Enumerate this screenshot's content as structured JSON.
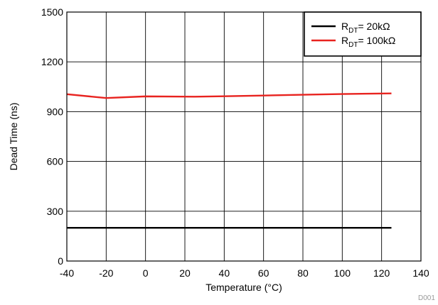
{
  "chart_data": {
    "type": "line",
    "xlabel": "Temperature (°C)",
    "ylabel": "Dead Time (ns)",
    "xlim": [
      -40,
      140
    ],
    "ylim": [
      0,
      1500
    ],
    "x_ticks": [
      -40,
      -20,
      0,
      20,
      40,
      60,
      80,
      100,
      120,
      140
    ],
    "y_ticks": [
      0,
      300,
      600,
      900,
      1200,
      1500
    ],
    "grid": true,
    "legend_position": "top-right",
    "series": [
      {
        "name_main": "R",
        "name_sub": "DT",
        "name_rest": "= 20kΩ",
        "color": "#000000",
        "x": [
          -40,
          -20,
          0,
          25,
          40,
          60,
          80,
          100,
          125
        ],
        "y": [
          200,
          200,
          200,
          200,
          200,
          200,
          200,
          200,
          200
        ]
      },
      {
        "name_main": "R",
        "name_sub": "DT",
        "name_rest": "= 100kΩ",
        "color": "#e8231f",
        "x": [
          -40,
          -20,
          0,
          25,
          40,
          60,
          80,
          100,
          125
        ],
        "y": [
          1005,
          982,
          992,
          990,
          993,
          997,
          1002,
          1006,
          1010
        ]
      }
    ],
    "figure_code": "D001"
  }
}
